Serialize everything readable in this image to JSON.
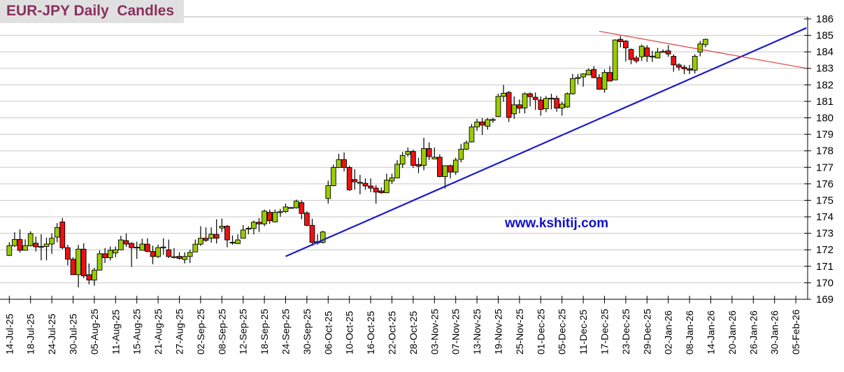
{
  "chart_data": {
    "type": "candlestick",
    "title": "EUR-JPY Daily  Candles",
    "watermark": "www.kshitij.com",
    "ylim": [
      169,
      186
    ],
    "y_ticks": [
      169,
      170,
      171,
      172,
      173,
      174,
      175,
      176,
      177,
      178,
      179,
      180,
      181,
      182,
      183,
      184,
      185,
      186
    ],
    "y_axis_side": "right",
    "grid": true,
    "x_tick_labels": [
      "14-Jul-25",
      "18-Jul-25",
      "24-Jul-25",
      "30-Jul-25",
      "05-Aug-25",
      "11-Aug-25",
      "15-Aug-25",
      "21-Aug-25",
      "27-Aug-25",
      "02-Sep-25",
      "08-Sep-25",
      "12-Sep-25",
      "18-Sep-25",
      "24-Sep-25",
      "30-Sep-25",
      "06-Oct-25",
      "10-Oct-25",
      "16-Oct-25",
      "22-Oct-25",
      "28-Oct-25",
      "03-Nov-25",
      "07-Nov-25",
      "13-Nov-25",
      "19-Nov-25",
      "25-Nov-25",
      "01-Dec-25",
      "05-Dec-25",
      "11-Dec-25",
      "17-Dec-25",
      "23-Dec-25",
      "29-Dec-25",
      "02-Jan-26",
      "08-Jan-26",
      "14-Jan-26",
      "20-Jan-26",
      "26-Jan-26",
      "30-Jan-26",
      "05-Feb-26"
    ],
    "colors": {
      "up": "#99cc00",
      "down": "#ee1111",
      "grid": "#c8c8c8",
      "support_line": "#1a1acc",
      "resistance_line": "#e04040",
      "title": "#8b2f5f"
    },
    "ohlc_fields": [
      "open",
      "high",
      "low",
      "close"
    ],
    "ohlc": [
      [
        171.66,
        172.46,
        171.62,
        172.25
      ],
      [
        172.25,
        173.06,
        172.18,
        172.63
      ],
      [
        172.63,
        173.23,
        171.83,
        171.97
      ],
      [
        171.97,
        172.63,
        171.95,
        172.25
      ],
      [
        172.25,
        173.12,
        172.2,
        172.98
      ],
      [
        172.4,
        172.8,
        171.9,
        172.18
      ],
      [
        172.2,
        172.95,
        171.36,
        172.2
      ],
      [
        172.2,
        172.74,
        171.36,
        172.35
      ],
      [
        172.35,
        173.0,
        171.75,
        172.7
      ],
      [
        172.77,
        173.62,
        172.46,
        173.35
      ],
      [
        173.69,
        173.93,
        172.04,
        172.13
      ],
      [
        172.13,
        172.3,
        171.05,
        171.43
      ],
      [
        171.43,
        171.55,
        170.47,
        170.49
      ],
      [
        170.49,
        172.3,
        169.72,
        172.04
      ],
      [
        172.04,
        172.39,
        170.28,
        170.42
      ],
      [
        170.49,
        171.17,
        169.9,
        170.17
      ],
      [
        170.17,
        170.91,
        169.82,
        170.77
      ],
      [
        170.77,
        171.97,
        170.75,
        171.76
      ],
      [
        171.76,
        172.1,
        171.2,
        171.52
      ],
      [
        171.52,
        172.2,
        171.36,
        171.97
      ],
      [
        171.81,
        172.2,
        171.55,
        172.0
      ],
      [
        172.0,
        172.85,
        171.98,
        172.6
      ],
      [
        172.56,
        173.0,
        172.18,
        172.35
      ],
      [
        172.39,
        172.46,
        170.96,
        172.13
      ],
      [
        172.15,
        172.5,
        171.45,
        172.16
      ],
      [
        171.97,
        172.67,
        171.95,
        172.35
      ],
      [
        172.34,
        172.7,
        171.85,
        171.9
      ],
      [
        171.9,
        172.25,
        171.13,
        171.59
      ],
      [
        171.59,
        172.31,
        171.5,
        172.13
      ],
      [
        172.17,
        172.7,
        171.69,
        172.17
      ],
      [
        172.0,
        172.62,
        171.5,
        171.59
      ],
      [
        171.57,
        172.1,
        171.48,
        171.58
      ],
      [
        171.6,
        171.85,
        171.4,
        171.48
      ],
      [
        171.41,
        171.85,
        171.17,
        171.59
      ],
      [
        171.6,
        172.0,
        171.2,
        171.84
      ],
      [
        171.87,
        172.62,
        171.85,
        172.34
      ],
      [
        172.34,
        173.43,
        172.24,
        172.7
      ],
      [
        172.7,
        173.36,
        172.48,
        172.57
      ],
      [
        172.7,
        173.36,
        172.43,
        172.94
      ],
      [
        172.93,
        173.85,
        172.38,
        172.7
      ],
      [
        173.32,
        173.9,
        173.08,
        173.43
      ],
      [
        173.43,
        173.5,
        172.15,
        172.6
      ],
      [
        172.45,
        172.87,
        172.3,
        172.46
      ],
      [
        172.38,
        172.94,
        172.34,
        172.6
      ],
      [
        172.7,
        173.5,
        172.68,
        173.2
      ],
      [
        173.3,
        173.43,
        172.94,
        173.3
      ],
      [
        173.29,
        173.78,
        172.94,
        173.67
      ],
      [
        173.67,
        173.92,
        173.08,
        173.57
      ],
      [
        173.57,
        174.44,
        173.43,
        174.34
      ],
      [
        174.27,
        174.44,
        173.57,
        173.76
      ],
      [
        173.69,
        174.44,
        173.67,
        174.27
      ],
      [
        174.3,
        174.48,
        174.0,
        174.31
      ],
      [
        174.32,
        174.8,
        174.23,
        174.6
      ],
      [
        174.55,
        174.6,
        174.5,
        174.56
      ],
      [
        174.55,
        175.04,
        174.5,
        174.94
      ],
      [
        174.86,
        175.0,
        173.85,
        174.2
      ],
      [
        174.23,
        174.34,
        173.43,
        173.48
      ],
      [
        173.48,
        173.88,
        172.24,
        172.45
      ],
      [
        172.42,
        172.94,
        172.31,
        172.49
      ],
      [
        172.45,
        173.15,
        172.38,
        173.08
      ],
      [
        175.11,
        176.19,
        174.8,
        175.89
      ],
      [
        175.89,
        177.17,
        175.85,
        176.99
      ],
      [
        176.99,
        177.82,
        176.95,
        177.47
      ],
      [
        177.47,
        177.9,
        176.75,
        176.99
      ],
      [
        176.99,
        177.1,
        175.57,
        175.64
      ],
      [
        176.26,
        176.89,
        175.64,
        176.12
      ],
      [
        176.08,
        176.54,
        175.36,
        176.09
      ],
      [
        176.03,
        176.33,
        175.64,
        175.87
      ],
      [
        175.87,
        176.33,
        175.5,
        175.74
      ],
      [
        175.74,
        175.92,
        174.8,
        175.5
      ],
      [
        175.57,
        175.78,
        175.4,
        175.46
      ],
      [
        175.46,
        176.61,
        175.43,
        176.22
      ],
      [
        176.17,
        176.61,
        175.99,
        176.36
      ],
      [
        176.36,
        177.44,
        176.33,
        177.19
      ],
      [
        177.19,
        177.93,
        176.96,
        177.72
      ],
      [
        177.79,
        178.2,
        177.65,
        177.96
      ],
      [
        177.96,
        178.07,
        176.96,
        177.12
      ],
      [
        177.17,
        177.58,
        176.65,
        177.07
      ],
      [
        177.12,
        178.79,
        176.82,
        178.14
      ],
      [
        178.14,
        178.51,
        177.44,
        177.65
      ],
      [
        177.51,
        178.2,
        177.5,
        177.61
      ],
      [
        177.61,
        177.79,
        176.4,
        176.44
      ],
      [
        176.44,
        177.12,
        175.71,
        177.1
      ],
      [
        177.1,
        177.17,
        176.33,
        176.71
      ],
      [
        176.71,
        177.58,
        176.54,
        177.44
      ],
      [
        177.48,
        178.42,
        177.3,
        178.1
      ],
      [
        178.1,
        178.63,
        178.05,
        178.49
      ],
      [
        178.54,
        179.63,
        178.5,
        179.45
      ],
      [
        179.45,
        179.94,
        179.21,
        179.75
      ],
      [
        179.75,
        179.99,
        178.96,
        179.56
      ],
      [
        179.49,
        179.99,
        179.28,
        179.89
      ],
      [
        179.89,
        179.99,
        179.7,
        179.9
      ],
      [
        180.08,
        181.46,
        180.05,
        181.3
      ],
      [
        181.3,
        182.0,
        180.97,
        181.49
      ],
      [
        181.54,
        181.63,
        179.75,
        180.03
      ],
      [
        180.24,
        181.3,
        179.94,
        180.79
      ],
      [
        180.79,
        181.11,
        180.27,
        180.58
      ],
      [
        180.6,
        181.54,
        180.27,
        181.46
      ],
      [
        181.46,
        181.54,
        180.69,
        181.28
      ],
      [
        181.25,
        181.54,
        180.48,
        181.11
      ],
      [
        181.08,
        181.3,
        180.13,
        180.51
      ],
      [
        180.55,
        181.32,
        180.34,
        181.18
      ],
      [
        181.18,
        181.46,
        180.51,
        181.19
      ],
      [
        181.18,
        181.35,
        180.37,
        180.59
      ],
      [
        180.59,
        180.97,
        180.13,
        180.83
      ],
      [
        180.66,
        181.54,
        180.6,
        181.46
      ],
      [
        181.46,
        182.66,
        181.4,
        182.38
      ],
      [
        182.38,
        182.66,
        182.03,
        182.45
      ],
      [
        182.48,
        182.7,
        181.89,
        182.66
      ],
      [
        182.61,
        183.0,
        182.58,
        182.89
      ],
      [
        182.93,
        183.14,
        182.4,
        182.44
      ],
      [
        182.44,
        182.65,
        181.7,
        181.73
      ],
      [
        181.73,
        182.93,
        181.52,
        182.75
      ],
      [
        182.75,
        183.14,
        182.2,
        182.23
      ],
      [
        182.3,
        184.76,
        182.28,
        184.72
      ],
      [
        184.76,
        184.97,
        184.27,
        184.62
      ],
      [
        184.65,
        184.72,
        183.42,
        184.24
      ],
      [
        184.15,
        184.2,
        183.25,
        183.54
      ],
      [
        183.63,
        183.77,
        183.31,
        183.45
      ],
      [
        183.7,
        184.44,
        183.45,
        184.34
      ],
      [
        184.24,
        184.41,
        183.39,
        183.73
      ],
      [
        183.73,
        184.06,
        183.39,
        183.74
      ],
      [
        183.63,
        184.24,
        183.6,
        183.99
      ],
      [
        184.01,
        184.15,
        183.98,
        184.02
      ],
      [
        184.06,
        184.41,
        183.7,
        183.87
      ],
      [
        183.73,
        183.85,
        182.79,
        183.21
      ],
      [
        183.21,
        183.31,
        182.86,
        183.07
      ],
      [
        183.07,
        183.21,
        182.65,
        182.97
      ],
      [
        182.97,
        183.21,
        182.65,
        182.89
      ],
      [
        182.89,
        183.85,
        182.69,
        183.73
      ],
      [
        183.99,
        184.66,
        183.73,
        184.48
      ],
      [
        184.44,
        184.8,
        184.27,
        184.76
      ]
    ],
    "trendlines": [
      {
        "kind": "support",
        "from": {
          "date": "24-Sep-25",
          "price": 171.6
        },
        "to": {
          "date": "09-Feb-26",
          "price": 185.45
        }
      },
      {
        "kind": "resistance",
        "from": {
          "date": "16-Dec-25",
          "price": 185.25
        },
        "to": {
          "date": "09-Feb-26",
          "price": 183.0
        }
      }
    ]
  }
}
